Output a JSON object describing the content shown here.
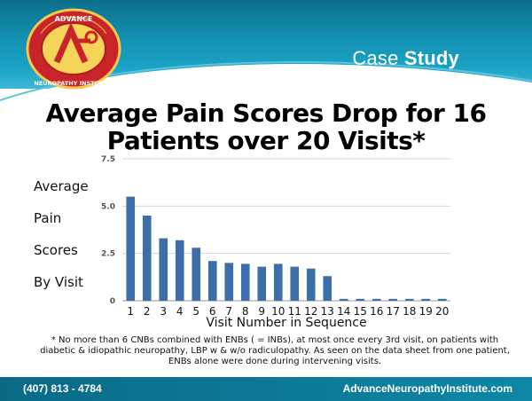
{
  "header": {
    "logo_text": "ADVANCE NEUROPATHY INSTITUTE",
    "case_label_light": "Case",
    "case_label_bold": "Study"
  },
  "title": "Average Pain Scores Drop for 16 Patients over 20 Visits*",
  "ylabel_lines": [
    "Average",
    "Pain",
    "Scores",
    "By Visit"
  ],
  "chart_data": {
    "type": "bar",
    "title": "Average Pain Scores Drop for 16 Patients over 20 Visits*",
    "xlabel": "Visit Number in Sequence",
    "ylabel": "Average Pain Scores By Visit",
    "categories": [
      "1",
      "2",
      "3",
      "4",
      "5",
      "6",
      "7",
      "8",
      "9",
      "10",
      "11",
      "12",
      "13",
      "14",
      "15",
      "16",
      "17",
      "18",
      "19",
      "20"
    ],
    "values": [
      5.5,
      4.5,
      3.3,
      3.2,
      2.8,
      2.1,
      2.0,
      1.95,
      1.8,
      1.95,
      1.8,
      1.7,
      1.3,
      0.1,
      0.1,
      0.1,
      0.1,
      0.1,
      0.1,
      0.1
    ],
    "yticks": [
      0,
      2.5,
      5.0,
      7.5
    ],
    "ytick_labels": [
      "0",
      "2.5",
      "5.0",
      "7.5"
    ],
    "ylim": [
      0,
      7.5
    ],
    "grid": true,
    "bar_color": "#3c6ea9"
  },
  "footnote": "* No more than 6 CNBs combined with ENBs ( = INBs), at most once every 3rd visit, on patients with diabetic & idiopathic neuropathy, LBP w & w/o radiculopathy.  As seen on the data sheet from one patient, ENBs alone were done during intervening visits.",
  "footer": {
    "phone": "(407) 813 - 4784",
    "website": "AdvanceNeuropathyInstitute.com"
  }
}
